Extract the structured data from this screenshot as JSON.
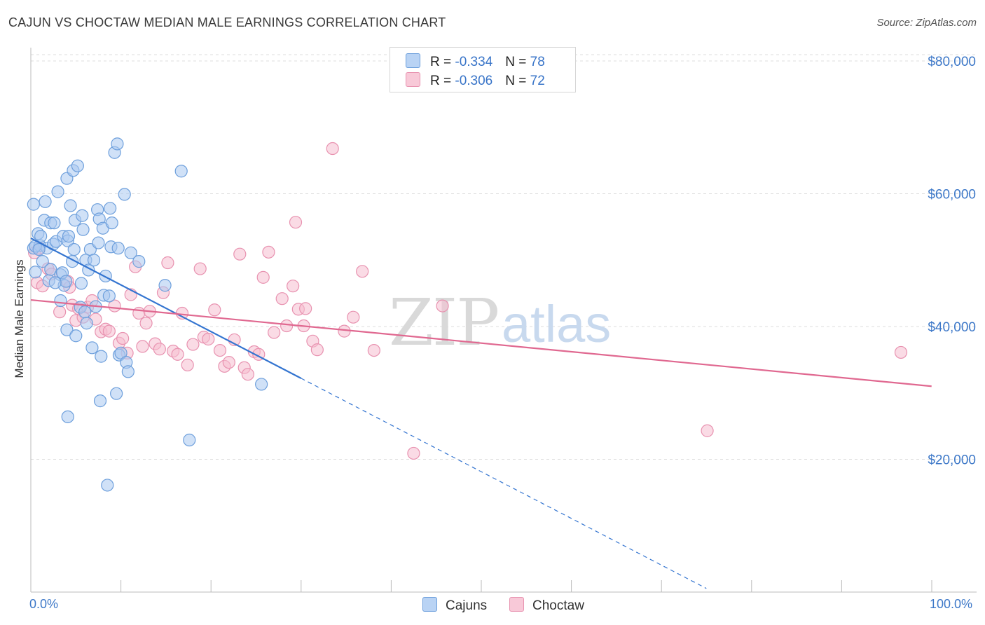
{
  "header": {
    "title": "CAJUN VS CHOCTAW MEDIAN MALE EARNINGS CORRELATION CHART",
    "source": "Source: ZipAtlas.com"
  },
  "legend": {
    "rows": [
      {
        "r_label": "R = ",
        "r_value": "-0.334",
        "n_label": "N = ",
        "n_value": "78"
      },
      {
        "r_label": "R = ",
        "r_value": "-0.306",
        "n_label": "N = ",
        "n_value": "72"
      }
    ],
    "series_names": [
      "Cajuns",
      "Choctaw"
    ]
  },
  "colors": {
    "cajun_fill": "#a9c8f0",
    "cajun_stroke": "#6d9fdc",
    "cajun_line": "#3374d0",
    "choctaw_fill": "#f6bdd0",
    "choctaw_stroke": "#e892b0",
    "choctaw_line": "#e06890",
    "axis_label": "#3d78c8",
    "grid": "#dddddd"
  },
  "chart_data": {
    "type": "scatter",
    "title": "CAJUN VS CHOCTAW MEDIAN MALE EARNINGS CORRELATION CHART",
    "xlabel": "",
    "ylabel": "Median Male Earnings",
    "xlim": [
      0,
      1.05
    ],
    "ylim": [
      0,
      82000
    ],
    "x_tick_labels": [
      "0.0%",
      "100.0%"
    ],
    "y_ticks": [
      20000,
      40000,
      60000,
      80000
    ],
    "y_tick_labels": [
      "$20,000",
      "$40,000",
      "$60,000",
      "$80,000"
    ],
    "grid": true,
    "legend_position": "top-center",
    "watermark": "ZIPatlas",
    "series": [
      {
        "name": "Cajuns",
        "r": -0.334,
        "n": 78,
        "trend": {
          "x0": 0.0,
          "y0": 53300,
          "x1": 0.3,
          "y1": 32200,
          "dashed_to_x": 0.75
        },
        "points": [
          [
            0.003,
            58400
          ],
          [
            0.003,
            51800
          ],
          [
            0.005,
            48200
          ],
          [
            0.008,
            54000
          ],
          [
            0.01,
            52200
          ],
          [
            0.011,
            53600
          ],
          [
            0.013,
            49800
          ],
          [
            0.015,
            56000
          ],
          [
            0.016,
            58800
          ],
          [
            0.018,
            51800
          ],
          [
            0.02,
            46900
          ],
          [
            0.022,
            48600
          ],
          [
            0.022,
            55600
          ],
          [
            0.025,
            52400
          ],
          [
            0.026,
            55600
          ],
          [
            0.028,
            52800
          ],
          [
            0.03,
            60300
          ],
          [
            0.033,
            47800
          ],
          [
            0.033,
            43900
          ],
          [
            0.035,
            48100
          ],
          [
            0.036,
            53600
          ],
          [
            0.037,
            46200
          ],
          [
            0.04,
            62300
          ],
          [
            0.039,
            46800
          ],
          [
            0.041,
            52900
          ],
          [
            0.04,
            39500
          ],
          [
            0.042,
            53600
          ],
          [
            0.041,
            26400
          ],
          [
            0.044,
            58200
          ],
          [
            0.046,
            49800
          ],
          [
            0.047,
            63500
          ],
          [
            0.048,
            51600
          ],
          [
            0.049,
            56000
          ],
          [
            0.05,
            38600
          ],
          [
            0.052,
            64200
          ],
          [
            0.055,
            42900
          ],
          [
            0.056,
            46500
          ],
          [
            0.057,
            56700
          ],
          [
            0.058,
            54600
          ],
          [
            0.06,
            42200
          ],
          [
            0.061,
            50000
          ],
          [
            0.062,
            40500
          ],
          [
            0.064,
            48500
          ],
          [
            0.066,
            51600
          ],
          [
            0.068,
            36800
          ],
          [
            0.07,
            50000
          ],
          [
            0.072,
            43000
          ],
          [
            0.074,
            57600
          ],
          [
            0.075,
            52600
          ],
          [
            0.076,
            56200
          ],
          [
            0.077,
            28800
          ],
          [
            0.078,
            35500
          ],
          [
            0.08,
            54800
          ],
          [
            0.081,
            44700
          ],
          [
            0.083,
            47600
          ],
          [
            0.085,
            16100
          ],
          [
            0.087,
            44600
          ],
          [
            0.088,
            57800
          ],
          [
            0.089,
            52000
          ],
          [
            0.09,
            55600
          ],
          [
            0.093,
            66200
          ],
          [
            0.095,
            29900
          ],
          [
            0.096,
            67500
          ],
          [
            0.097,
            51800
          ],
          [
            0.098,
            35700
          ],
          [
            0.1,
            36000
          ],
          [
            0.104,
            59900
          ],
          [
            0.106,
            34600
          ],
          [
            0.108,
            33200
          ],
          [
            0.111,
            51100
          ],
          [
            0.149,
            46200
          ],
          [
            0.167,
            63400
          ],
          [
            0.176,
            22900
          ],
          [
            0.256,
            31300
          ],
          [
            0.005,
            52100
          ],
          [
            0.009,
            51600
          ],
          [
            0.027,
            46600
          ],
          [
            0.12,
            49800
          ]
        ]
      },
      {
        "name": "Choctaw",
        "r": -0.306,
        "n": 72,
        "trend": {
          "x0": 0.0,
          "y0": 44000,
          "x1": 1.0,
          "y1": 31000
        },
        "points": [
          [
            0.004,
            51100
          ],
          [
            0.007,
            46600
          ],
          [
            0.009,
            51800
          ],
          [
            0.013,
            46100
          ],
          [
            0.019,
            48700
          ],
          [
            0.023,
            47900
          ],
          [
            0.032,
            42200
          ],
          [
            0.041,
            46800
          ],
          [
            0.043,
            45900
          ],
          [
            0.046,
            43200
          ],
          [
            0.05,
            40900
          ],
          [
            0.053,
            42700
          ],
          [
            0.058,
            41400
          ],
          [
            0.063,
            42900
          ],
          [
            0.068,
            43900
          ],
          [
            0.072,
            41100
          ],
          [
            0.078,
            39200
          ],
          [
            0.083,
            39600
          ],
          [
            0.087,
            39300
          ],
          [
            0.093,
            43100
          ],
          [
            0.098,
            37500
          ],
          [
            0.102,
            38200
          ],
          [
            0.107,
            36000
          ],
          [
            0.111,
            44800
          ],
          [
            0.116,
            49000
          ],
          [
            0.12,
            42000
          ],
          [
            0.124,
            37000
          ],
          [
            0.128,
            40500
          ],
          [
            0.132,
            42300
          ],
          [
            0.138,
            37400
          ],
          [
            0.143,
            36600
          ],
          [
            0.147,
            45100
          ],
          [
            0.152,
            49600
          ],
          [
            0.158,
            36300
          ],
          [
            0.163,
            35800
          ],
          [
            0.168,
            42000
          ],
          [
            0.174,
            34200
          ],
          [
            0.18,
            37300
          ],
          [
            0.188,
            48700
          ],
          [
            0.192,
            38400
          ],
          [
            0.197,
            38100
          ],
          [
            0.204,
            42500
          ],
          [
            0.21,
            36400
          ],
          [
            0.215,
            34000
          ],
          [
            0.22,
            34600
          ],
          [
            0.226,
            38000
          ],
          [
            0.232,
            50900
          ],
          [
            0.237,
            33800
          ],
          [
            0.241,
            32800
          ],
          [
            0.248,
            36200
          ],
          [
            0.253,
            35800
          ],
          [
            0.258,
            47400
          ],
          [
            0.264,
            51200
          ],
          [
            0.27,
            39100
          ],
          [
            0.279,
            44200
          ],
          [
            0.284,
            40100
          ],
          [
            0.291,
            46100
          ],
          [
            0.294,
            55700
          ],
          [
            0.297,
            42600
          ],
          [
            0.303,
            40100
          ],
          [
            0.305,
            42700
          ],
          [
            0.313,
            37800
          ],
          [
            0.318,
            36500
          ],
          [
            0.335,
            66800
          ],
          [
            0.348,
            39300
          ],
          [
            0.358,
            41400
          ],
          [
            0.368,
            48300
          ],
          [
            0.381,
            36400
          ],
          [
            0.425,
            20900
          ],
          [
            0.457,
            43100
          ],
          [
            0.751,
            24300
          ],
          [
            0.966,
            36100
          ]
        ]
      }
    ]
  }
}
